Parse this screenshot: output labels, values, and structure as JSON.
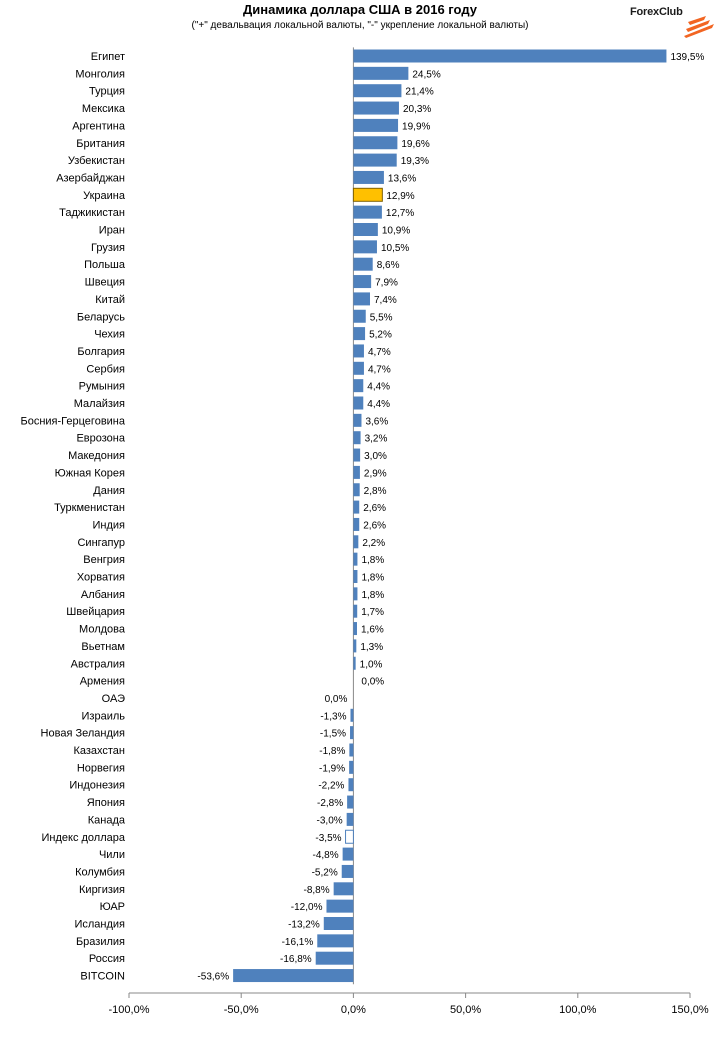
{
  "title": "Динамика доллара США в 2016 году",
  "subtitle": "(\"+\" девальвация локальной валюты, \"-\" укрепление локальной валюты)",
  "logo": {
    "text": "ForexClub",
    "mark_color": "#f26522"
  },
  "chart_data": {
    "type": "bar",
    "orientation": "horizontal",
    "title": "Динамика доллара США в 2016 году",
    "subtitle": "(\"+\" девальвация локальной валюты, \"-\" укрепление локальной валюты)",
    "xlim": [
      -100,
      150
    ],
    "xticks": [
      -100,
      -50,
      0,
      50,
      100,
      150
    ],
    "xtick_labels": [
      "-100,0%",
      "-50,0%",
      "0,0%",
      "50,0%",
      "100,0%",
      "150,0%"
    ],
    "grid": false,
    "default_color": "#4f81bd",
    "categories": [
      "Египет",
      "Монголия",
      "Турция",
      "Мексика",
      "Аргентина",
      "Британия",
      "Узбекистан",
      "Азербайджан",
      "Украина",
      "Таджикистан",
      "Иран",
      "Грузия",
      "Польша",
      "Швеция",
      "Китай",
      "Беларусь",
      "Чехия",
      "Болгария",
      "Сербия",
      "Румыния",
      "Малайзия",
      "Босния-Герцеговина",
      "Еврозона",
      "Македония",
      "Южная Корея",
      "Дания",
      "Туркменистан",
      "Индия",
      "Сингапур",
      "Венгрия",
      "Хорватия",
      "Албания",
      "Швейцария",
      "Молдова",
      "Вьетнам",
      "Австралия",
      "Армения",
      "ОАЭ",
      "Израиль",
      "Новая Зеландия",
      "Казахстан",
      "Норвегия",
      "Индонезия",
      "Япония",
      "Канада",
      "Индекс доллара",
      "Чили",
      "Колумбия",
      "Киргизия",
      "ЮАР",
      "Исландия",
      "Бразилия",
      "Россия",
      "BITCOIN"
    ],
    "values": [
      139.5,
      24.5,
      21.4,
      20.3,
      19.9,
      19.6,
      19.3,
      13.6,
      12.9,
      12.7,
      10.9,
      10.5,
      8.6,
      7.9,
      7.4,
      5.5,
      5.2,
      4.7,
      4.7,
      4.4,
      4.4,
      3.6,
      3.2,
      3.0,
      2.9,
      2.8,
      2.6,
      2.6,
      2.2,
      1.8,
      1.8,
      1.8,
      1.7,
      1.6,
      1.3,
      1.0,
      0.0,
      0.0,
      -1.3,
      -1.5,
      -1.8,
      -1.9,
      -2.2,
      -2.8,
      -3.0,
      -3.5,
      -4.8,
      -5.2,
      -8.8,
      -12.0,
      -13.2,
      -16.1,
      -16.8,
      -53.6
    ],
    "value_labels": [
      "139,5%",
      "24,5%",
      "21,4%",
      "20,3%",
      "19,9%",
      "19,6%",
      "19,3%",
      "13,6%",
      "12,9%",
      "12,7%",
      "10,9%",
      "10,5%",
      "8,6%",
      "7,9%",
      "7,4%",
      "5,5%",
      "5,2%",
      "4,7%",
      "4,7%",
      "4,4%",
      "4,4%",
      "3,6%",
      "3,2%",
      "3,0%",
      "2,9%",
      "2,8%",
      "2,6%",
      "2,6%",
      "2,2%",
      "1,8%",
      "1,8%",
      "1,8%",
      "1,7%",
      "1,6%",
      "1,3%",
      "1,0%",
      "0,0%",
      "0,0%",
      "-1,3%",
      "-1,5%",
      "-1,8%",
      "-1,9%",
      "-2,2%",
      "-2,8%",
      "-3,0%",
      "-3,5%",
      "-4,8%",
      "-5,2%",
      "-8,8%",
      "-12,0%",
      "-13,2%",
      "-16,1%",
      "-16,8%",
      "-53,6%"
    ],
    "highlights": {
      "Украина": {
        "fill": "#ffc000",
        "stroke": "#7f6000"
      },
      "Индекс доллара": {
        "fill": "#ffffff",
        "stroke": "#4f81bd"
      }
    }
  }
}
